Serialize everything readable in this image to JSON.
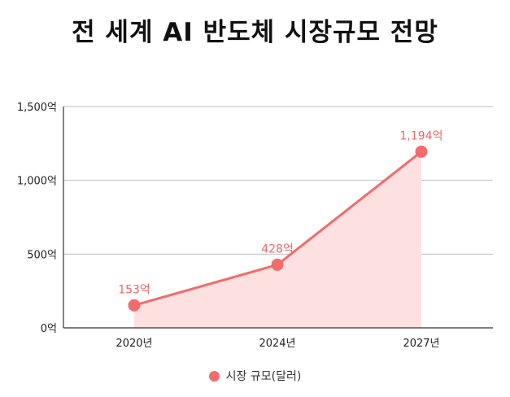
{
  "chart_data": {
    "type": "area",
    "title": "전 세계 AI 반도체 시장규모 전망",
    "categories": [
      "2020년",
      "2024년",
      "2027년"
    ],
    "series": [
      {
        "name": "시장 규모(달러)",
        "values": [
          153,
          428,
          1194
        ],
        "labels": [
          "153억",
          "428억",
          "1,194억"
        ]
      }
    ],
    "yticks": [
      {
        "value": 0,
        "label": "0억"
      },
      {
        "value": 500,
        "label": "500억"
      },
      {
        "value": 1000,
        "label": "1,000억"
      },
      {
        "value": 1500,
        "label": "1,500억"
      }
    ],
    "ylim": [
      0,
      1500
    ],
    "grid": true,
    "legend_position": "bottom",
    "colors": {
      "line": "#f36b6b",
      "fill": "#fde0e0",
      "label": "#f06565",
      "grid": "#bbbbbb",
      "axis": "#333333"
    }
  }
}
